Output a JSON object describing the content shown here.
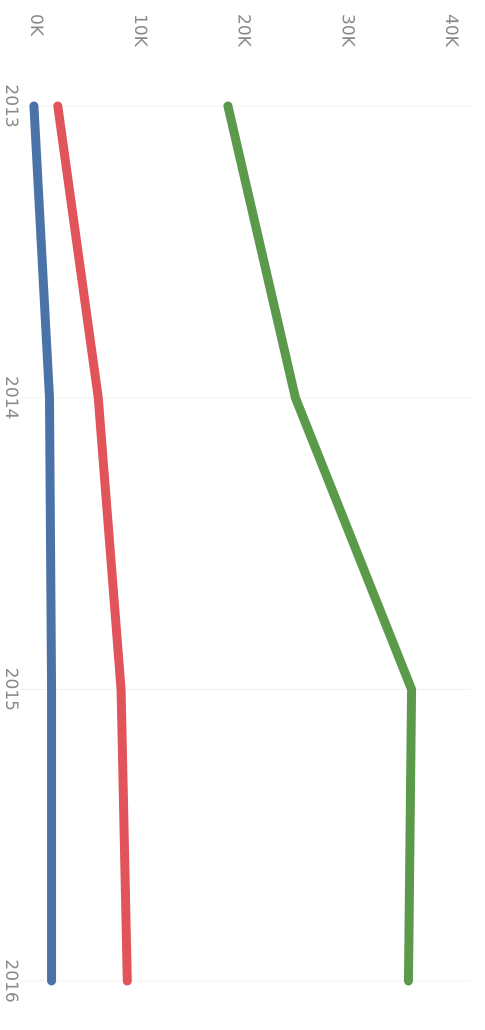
{
  "chart_data": {
    "type": "line",
    "orientation": "rotated-90-clockwise",
    "x": [
      "2013",
      "2014",
      "2015",
      "2016"
    ],
    "x_tick_labels": [
      "2013",
      "2014",
      "2015",
      "2016"
    ],
    "y_tick_labels": [
      "0K",
      "10K",
      "20K",
      "30K",
      "40K"
    ],
    "y_ticks": [
      0,
      10000,
      20000,
      30000,
      40000
    ],
    "ylim": [
      -1000,
      40000
    ],
    "grid": false,
    "title": "",
    "xlabel": "",
    "ylabel": "",
    "series": [
      {
        "color": "#5b9a4a",
        "values": [
          18500,
          25000,
          36200,
          35900
        ]
      },
      {
        "color": "#e0545a",
        "values": [
          2100,
          6000,
          8200,
          8800
        ]
      },
      {
        "color": "#4a74a8",
        "values": [
          -200,
          1300,
          1500,
          1500
        ]
      }
    ]
  }
}
